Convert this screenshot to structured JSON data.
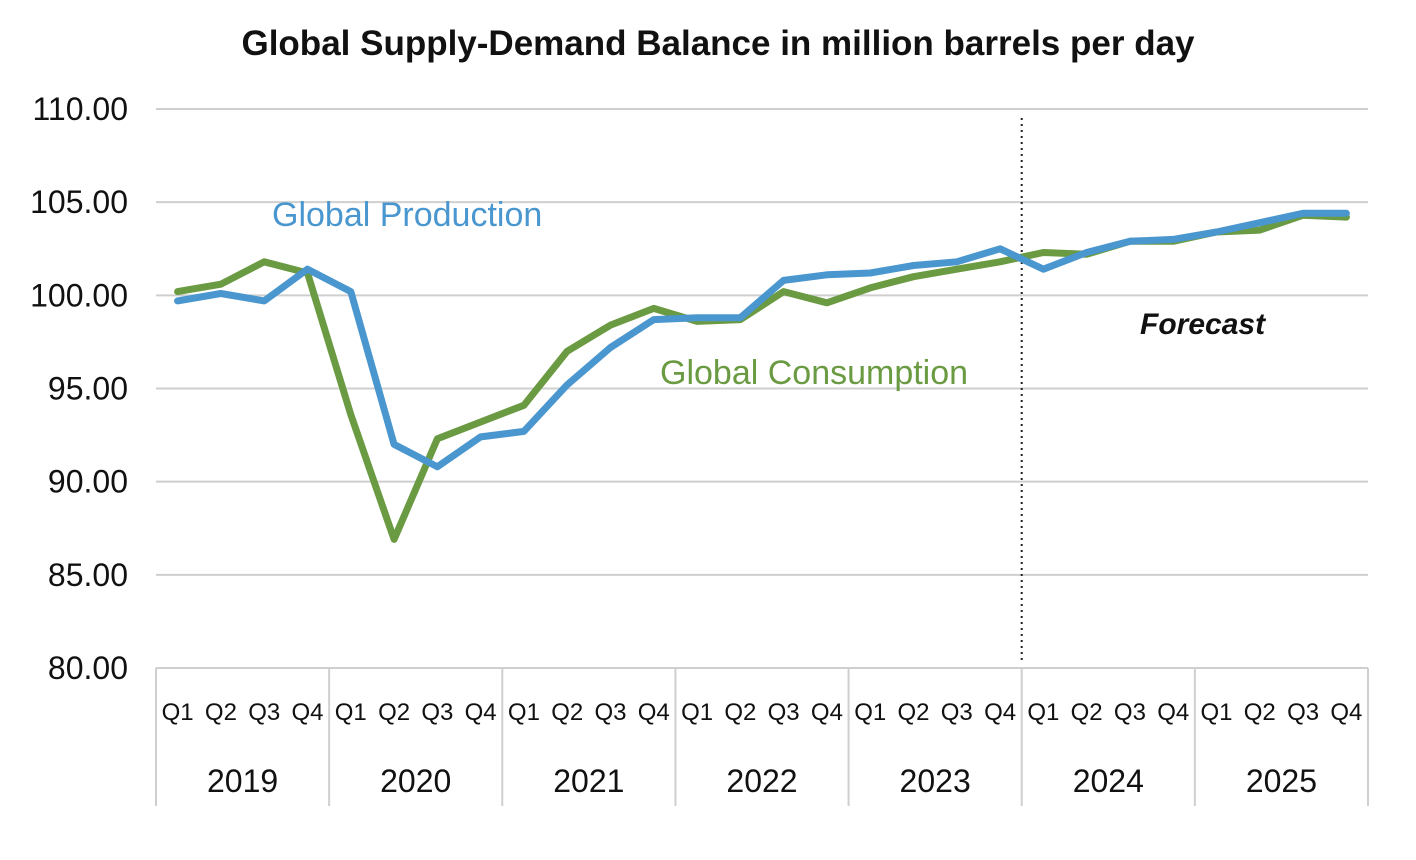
{
  "chart_data": {
    "type": "line",
    "title": "Global Supply-Demand Balance in million barrels per day",
    "xlabel": "",
    "ylabel": "",
    "ylim": [
      80,
      110
    ],
    "yticks": [
      "80.00",
      "85.00",
      "90.00",
      "95.00",
      "100.00",
      "105.00",
      "110.00"
    ],
    "grid": true,
    "years": [
      "2019",
      "2020",
      "2021",
      "2022",
      "2023",
      "2024",
      "2025"
    ],
    "quarters": [
      "Q1",
      "Q2",
      "Q3",
      "Q4"
    ],
    "x": [
      "2019 Q1",
      "2019 Q2",
      "2019 Q3",
      "2019 Q4",
      "2020 Q1",
      "2020 Q2",
      "2020 Q3",
      "2020 Q4",
      "2021 Q1",
      "2021 Q2",
      "2021 Q3",
      "2021 Q4",
      "2022 Q1",
      "2022 Q2",
      "2022 Q3",
      "2022 Q4",
      "2023 Q1",
      "2023 Q2",
      "2023 Q3",
      "2023 Q4",
      "2024 Q1",
      "2024 Q2",
      "2024 Q3",
      "2024 Q4",
      "2025 Q1",
      "2025 Q2",
      "2025 Q3",
      "2025 Q4"
    ],
    "series": [
      {
        "name": "Global Production",
        "color": "#4a96cf",
        "values": [
          99.7,
          100.1,
          99.7,
          101.4,
          100.2,
          92.0,
          90.8,
          92.4,
          92.7,
          95.2,
          97.2,
          98.7,
          98.8,
          98.8,
          100.8,
          101.1,
          101.2,
          101.6,
          101.8,
          102.5,
          101.4,
          102.3,
          102.9,
          103.0,
          103.4,
          103.9,
          104.4,
          104.4
        ]
      },
      {
        "name": "Global Consumption",
        "color": "#6a9a41",
        "values": [
          100.2,
          100.6,
          101.8,
          101.2,
          93.6,
          86.9,
          92.3,
          93.2,
          94.1,
          97.0,
          98.4,
          99.3,
          98.6,
          98.7,
          100.2,
          99.6,
          100.4,
          101.0,
          101.4,
          101.8,
          102.3,
          102.2,
          102.9,
          102.9,
          103.4,
          103.5,
          104.3,
          104.2
        ]
      }
    ],
    "annotations": {
      "production_label": "Global Production",
      "consumption_label": "Global Consumption",
      "forecast_label": "Forecast",
      "forecast_starts_after": "2023 Q4"
    }
  }
}
